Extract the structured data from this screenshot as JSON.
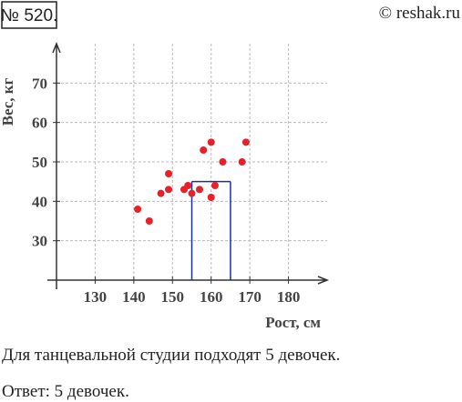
{
  "problem_number": "№ 520.",
  "watermark": "© reshak.ru",
  "chart_data": {
    "type": "scatter",
    "x_label": "Рост, см",
    "y_label": "Вес, кг",
    "xlim": [
      120,
      190
    ],
    "ylim": [
      20,
      80
    ],
    "xticks": [
      130,
      140,
      150,
      160,
      170,
      180
    ],
    "yticks": [
      30,
      40,
      50,
      60,
      70
    ],
    "grid": true,
    "series": [
      {
        "color": "#e8202a",
        "x": [
          141,
          144,
          147,
          149,
          149,
          153,
          154,
          155,
          157,
          158,
          160,
          160,
          161,
          163,
          168,
          169
        ],
        "values": [
          38,
          35,
          42,
          47,
          43,
          43,
          44,
          42,
          43,
          53,
          55,
          41,
          44,
          50,
          50,
          55
        ]
      }
    ],
    "highlight": {
      "x": [
        155,
        165
      ],
      "y": 45,
      "color": "#1a2fa0"
    }
  },
  "text": [
    "Для танцевальной студии подходят 5 девочек.",
    "Ответ: 5 девочек."
  ]
}
